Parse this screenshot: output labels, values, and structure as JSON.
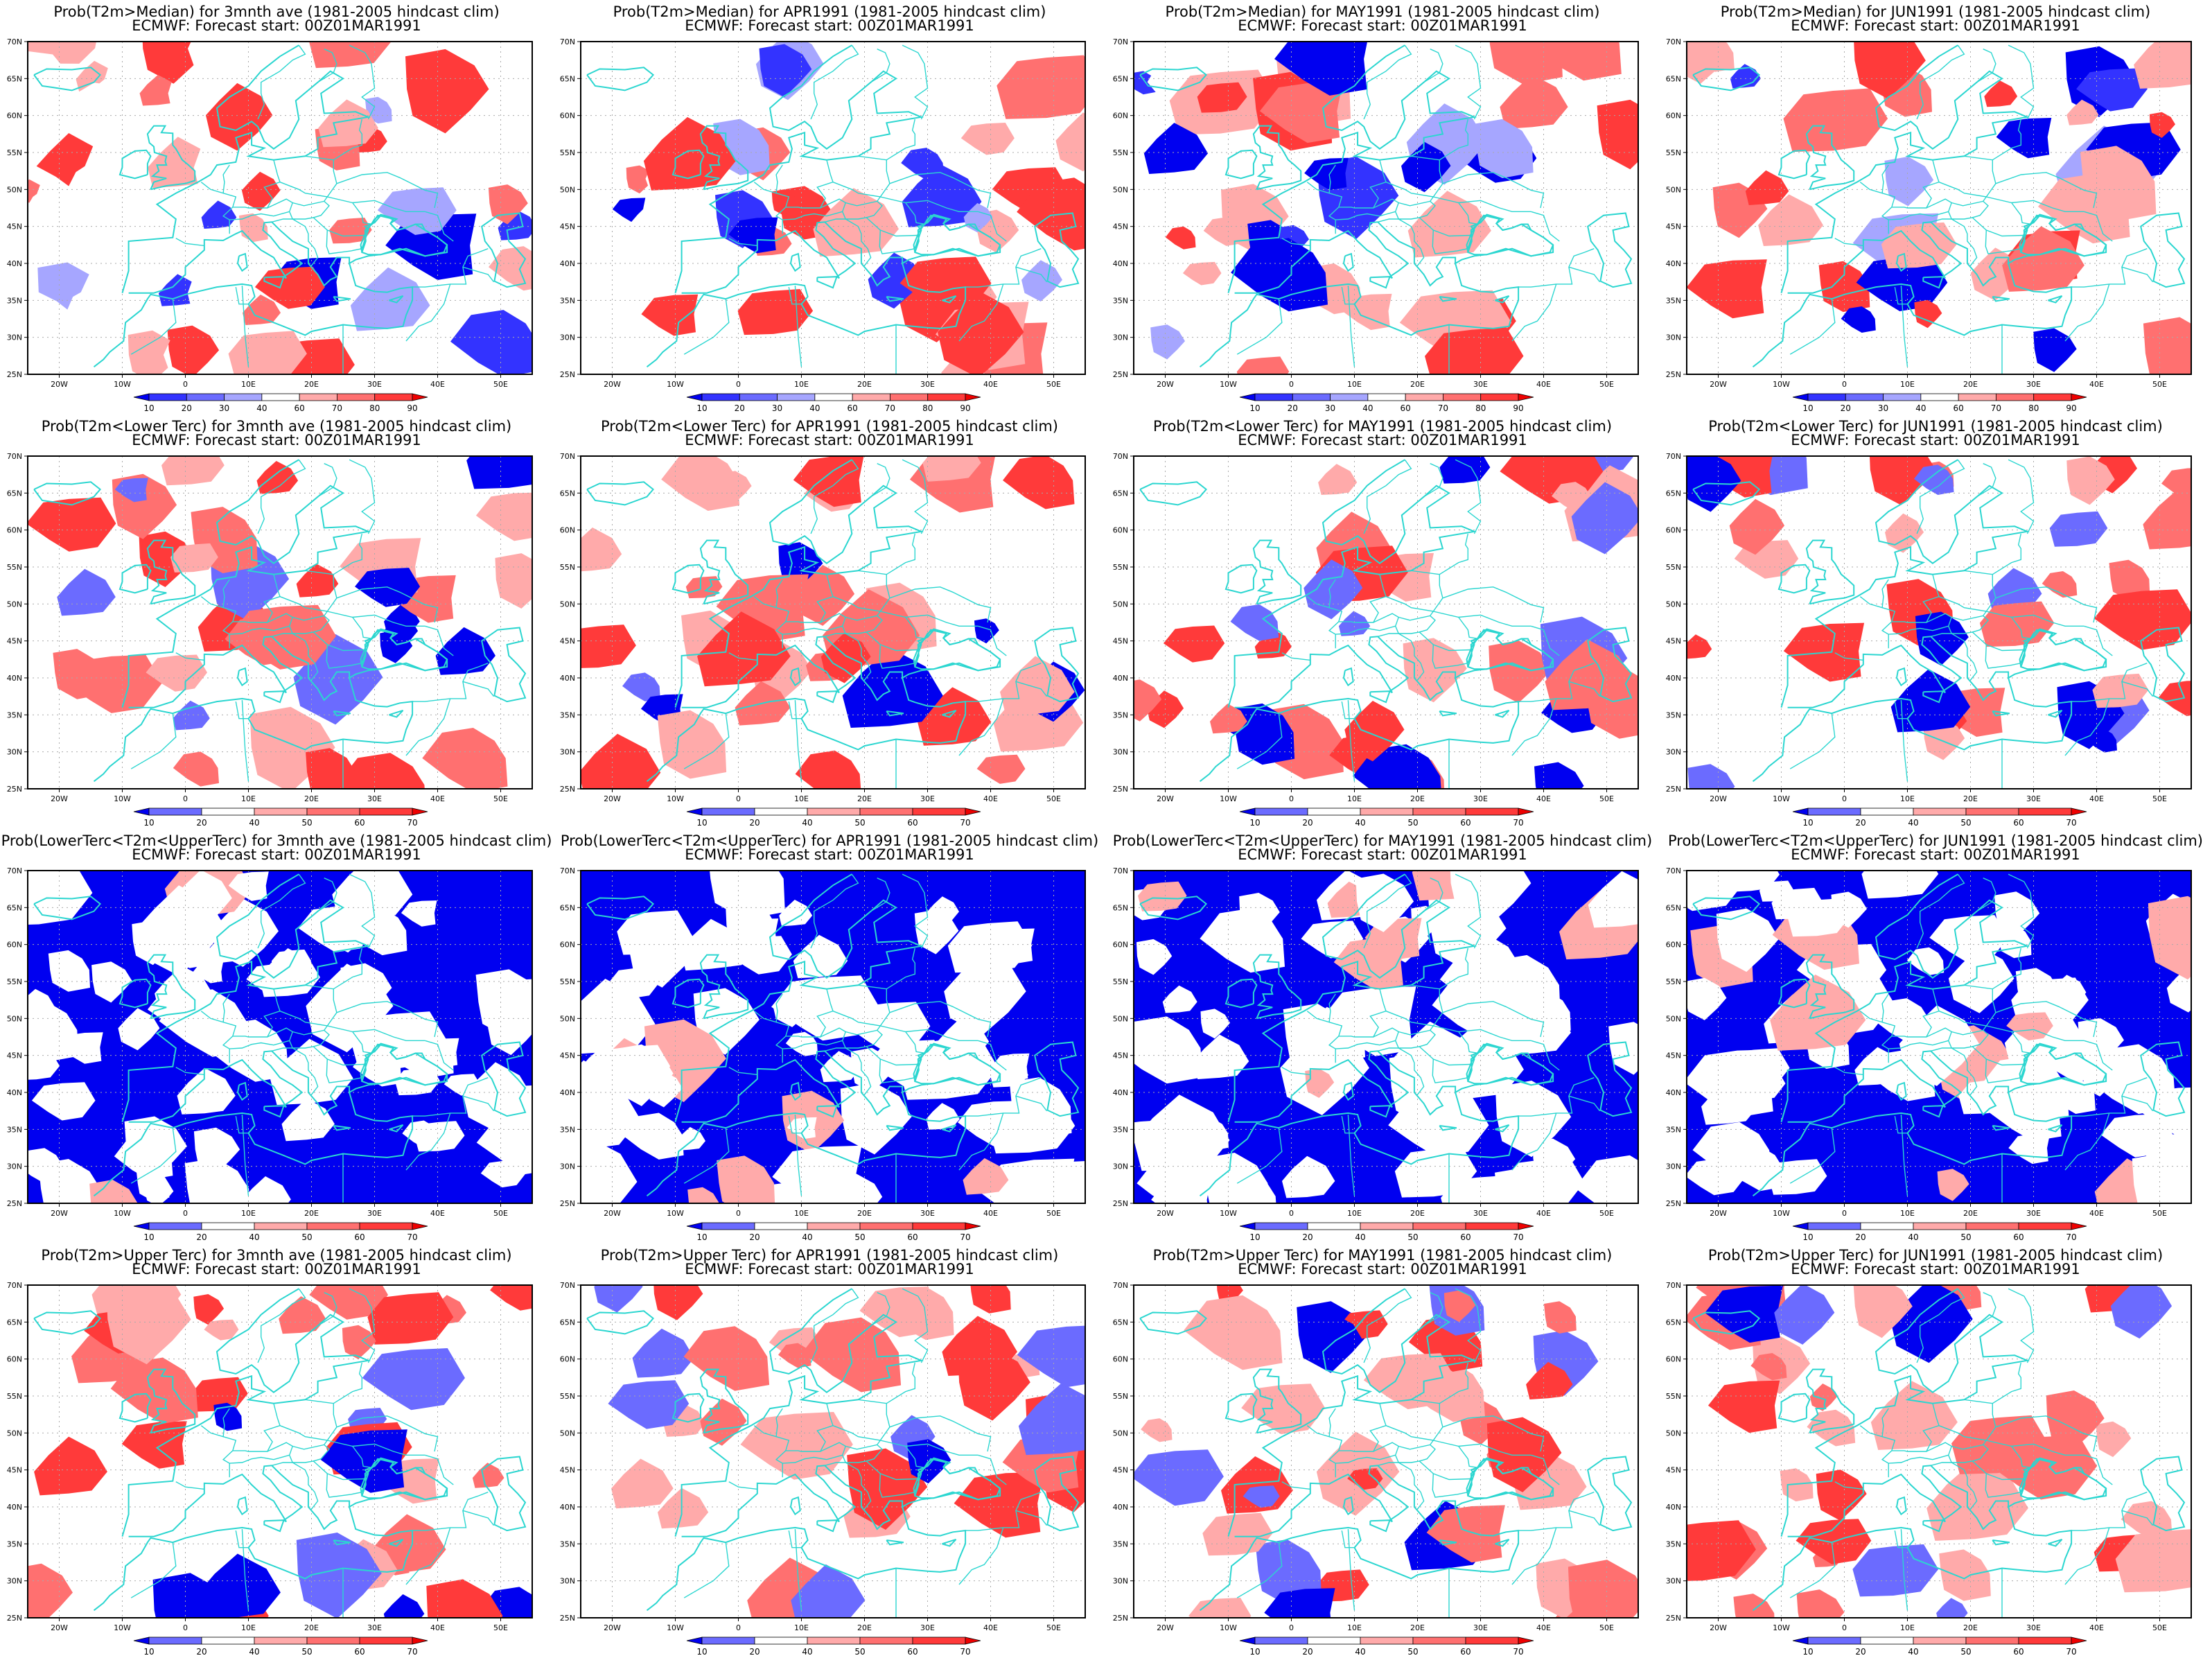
{
  "maps": [
    {
      "row": 0,
      "col": 0,
      "title_line1": "Prob(T2m>Median) for 3mnth ave (1981-2005 hindcast clim)",
      "title_line2": "ECMWF: Forecast start: 00Z01MAR1991",
      "legend": "median"
    },
    {
      "row": 0,
      "col": 1,
      "title_line1": "Prob(T2m>Median) for APR1991 (1981-2005 hindcast clim)",
      "title_line2": "ECMWF: Forecast start: 00Z01MAR1991",
      "legend": "median"
    },
    {
      "row": 0,
      "col": 2,
      "title_line1": "Prob(T2m>Median) for MAY1991 (1981-2005 hindcast clim)",
      "title_line2": "ECMWF: Forecast start: 00Z01MAR1991",
      "legend": "median"
    },
    {
      "row": 0,
      "col": 3,
      "title_line1": "Prob(T2m>Median) for JUN1991 (1981-2005 hindcast clim)",
      "title_line2": "ECMWF: Forecast start: 00Z01MAR1991",
      "legend": "median"
    },
    {
      "row": 1,
      "col": 0,
      "title_line1": "Prob(T2m<Lower Terc) for 3mnth ave (1981-2005 hindcast clim)",
      "title_line2": "ECMWF: Forecast start: 00Z01MAR1991",
      "legend": "tercile"
    },
    {
      "row": 1,
      "col": 1,
      "title_line1": "Prob(T2m<Lower Terc) for APR1991 (1981-2005 hindcast clim)",
      "title_line2": "ECMWF: Forecast start: 00Z01MAR1991",
      "legend": "tercile"
    },
    {
      "row": 1,
      "col": 2,
      "title_line1": "Prob(T2m<Lower Terc) for MAY1991 (1981-2005 hindcast clim)",
      "title_line2": "ECMWF: Forecast start: 00Z01MAR1991",
      "legend": "tercile"
    },
    {
      "row": 1,
      "col": 3,
      "title_line1": "Prob(T2m<Lower Terc) for JUN1991 (1981-2005 hindcast clim)",
      "title_line2": "ECMWF: Forecast start: 00Z01MAR1991",
      "legend": "tercile"
    },
    {
      "row": 2,
      "col": 0,
      "title_line1": "Prob(LowerTerc<T2m<UpperTerc) for 3mnth ave (1981-2005 hindcast clim)",
      "title_line2": "ECMWF: Forecast start: 00Z01MAR1991",
      "legend": "tercile"
    },
    {
      "row": 2,
      "col": 1,
      "title_line1": "Prob(LowerTerc<T2m<UpperTerc) for APR1991 (1981-2005 hindcast clim)",
      "title_line2": "ECMWF: Forecast start: 00Z01MAR1991",
      "legend": "tercile"
    },
    {
      "row": 2,
      "col": 2,
      "title_line1": "Prob(LowerTerc<T2m<UpperTerc) for MAY1991 (1981-2005 hindcast clim)",
      "title_line2": "ECMWF: Forecast start: 00Z01MAR1991",
      "legend": "tercile"
    },
    {
      "row": 2,
      "col": 3,
      "title_line1": "Prob(LowerTerc<T2m<UpperTerc) for JUN1991 (1981-2005 hindcast clim)",
      "title_line2": "ECMWF: Forecast start: 00Z01MAR1991",
      "legend": "tercile"
    },
    {
      "row": 3,
      "col": 0,
      "title_line1": "Prob(T2m>Upper Terc) for 3mnth ave (1981-2005 hindcast clim)",
      "title_line2": "ECMWF: Forecast start: 00Z01MAR1991",
      "legend": "tercile"
    },
    {
      "row": 3,
      "col": 1,
      "title_line1": "Prob(T2m>Upper Terc) for APR1991 (1981-2005 hindcast clim)",
      "title_line2": "ECMWF: Forecast start: 00Z01MAR1991",
      "legend": "tercile"
    },
    {
      "row": 3,
      "col": 2,
      "title_line1": "Prob(T2m>Upper Terc) for MAY1991 (1981-2005 hindcast clim)",
      "title_line2": "ECMWF: Forecast start: 00Z01MAR1991",
      "legend": "tercile"
    },
    {
      "row": 3,
      "col": 3,
      "title_line1": "Prob(T2m>Upper Terc) for JUN1991 (1981-2005 hindcast clim)",
      "title_line2": "ECMWF: Forecast start: 00Z01MAR1991",
      "legend": "tercile"
    }
  ],
  "lat_ticks": [
    "25N",
    "30N",
    "35N",
    "40N",
    "45N",
    "50N",
    "55N",
    "60N",
    "65N",
    "70N"
  ],
  "lon_ticks": [
    "20W",
    "10W",
    "0",
    "10E",
    "20E",
    "30E",
    "40E",
    "50E"
  ],
  "legends": {
    "median": {
      "labels": [
        "10",
        "20",
        "30",
        "40",
        "60",
        "70",
        "80",
        "90"
      ],
      "colors": [
        "#0000f0",
        "#3333ff",
        "#6b6bff",
        "#a6a6ff",
        "#ffffff",
        "#ffaaaa",
        "#ff7070",
        "#ff3a3a",
        "#ee0000"
      ]
    },
    "tercile": {
      "labels": [
        "10",
        "20",
        "40",
        "50",
        "60",
        "70"
      ],
      "colors": [
        "#0000f0",
        "#6b6bff",
        "#ffffff",
        "#ffaaaa",
        "#ff7070",
        "#ff3a3a",
        "#ee0000"
      ]
    }
  },
  "colors": {
    "coastline": "#2bd6d0",
    "frame": "#000000",
    "grid": "#aaaaaa"
  }
}
